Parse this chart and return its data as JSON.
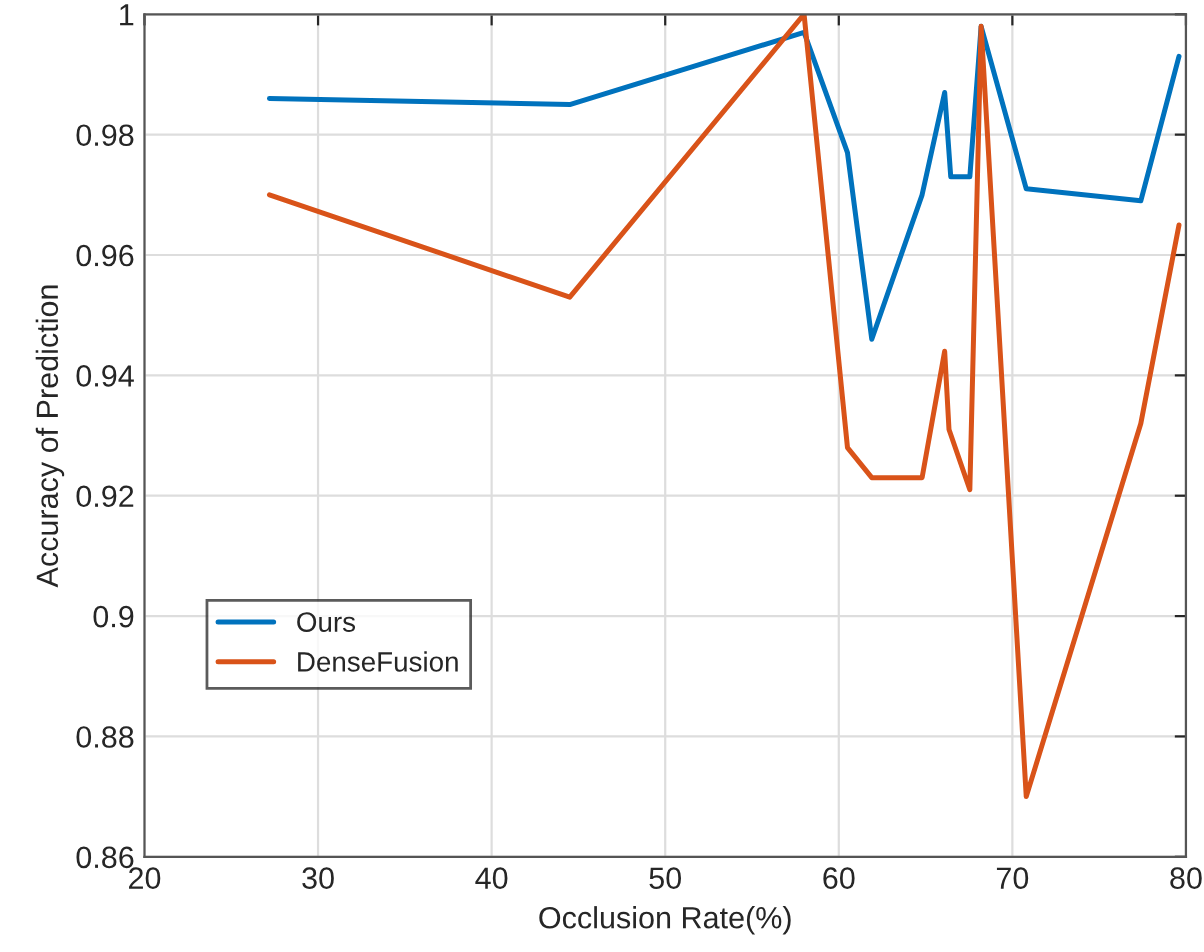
{
  "chart_data": {
    "type": "line",
    "xlabel": "Occlusion Rate(%)",
    "ylabel": "Accuracy of Prediction",
    "xlim": [
      20,
      80
    ],
    "xticks": [
      20,
      30,
      40,
      50,
      60,
      70,
      80
    ],
    "ylim": [
      0.86,
      1
    ],
    "yticks": [
      0.86,
      0.88,
      0.9,
      0.92,
      0.94,
      0.96,
      0.98,
      1
    ],
    "grid": true,
    "legend": "bottom left",
    "marker": "none",
    "line_style": "solid",
    "series": [
      {
        "name": "Ours",
        "color": "#0072bd",
        "x": [
          27.2,
          44.5,
          58.0,
          60.5,
          61.9,
          64.8,
          66.1,
          66.45,
          67.55,
          68.2,
          70.8,
          77.4,
          79.6
        ],
        "values": [
          0.986,
          0.985,
          0.997,
          0.977,
          0.946,
          0.97,
          0.987,
          0.973,
          0.973,
          0.998,
          0.971,
          0.969,
          0.993
        ]
      },
      {
        "name": "DenseFusion",
        "color": "#d95319",
        "x": [
          27.2,
          44.5,
          58.0,
          60.5,
          61.9,
          64.8,
          66.1,
          66.35,
          67.55,
          68.2,
          70.8,
          77.4,
          79.6
        ],
        "values": [
          0.97,
          0.953,
          1.0,
          0.928,
          0.923,
          0.923,
          0.944,
          0.931,
          0.921,
          0.998,
          0.87,
          0.932,
          0.965
        ]
      }
    ]
  }
}
